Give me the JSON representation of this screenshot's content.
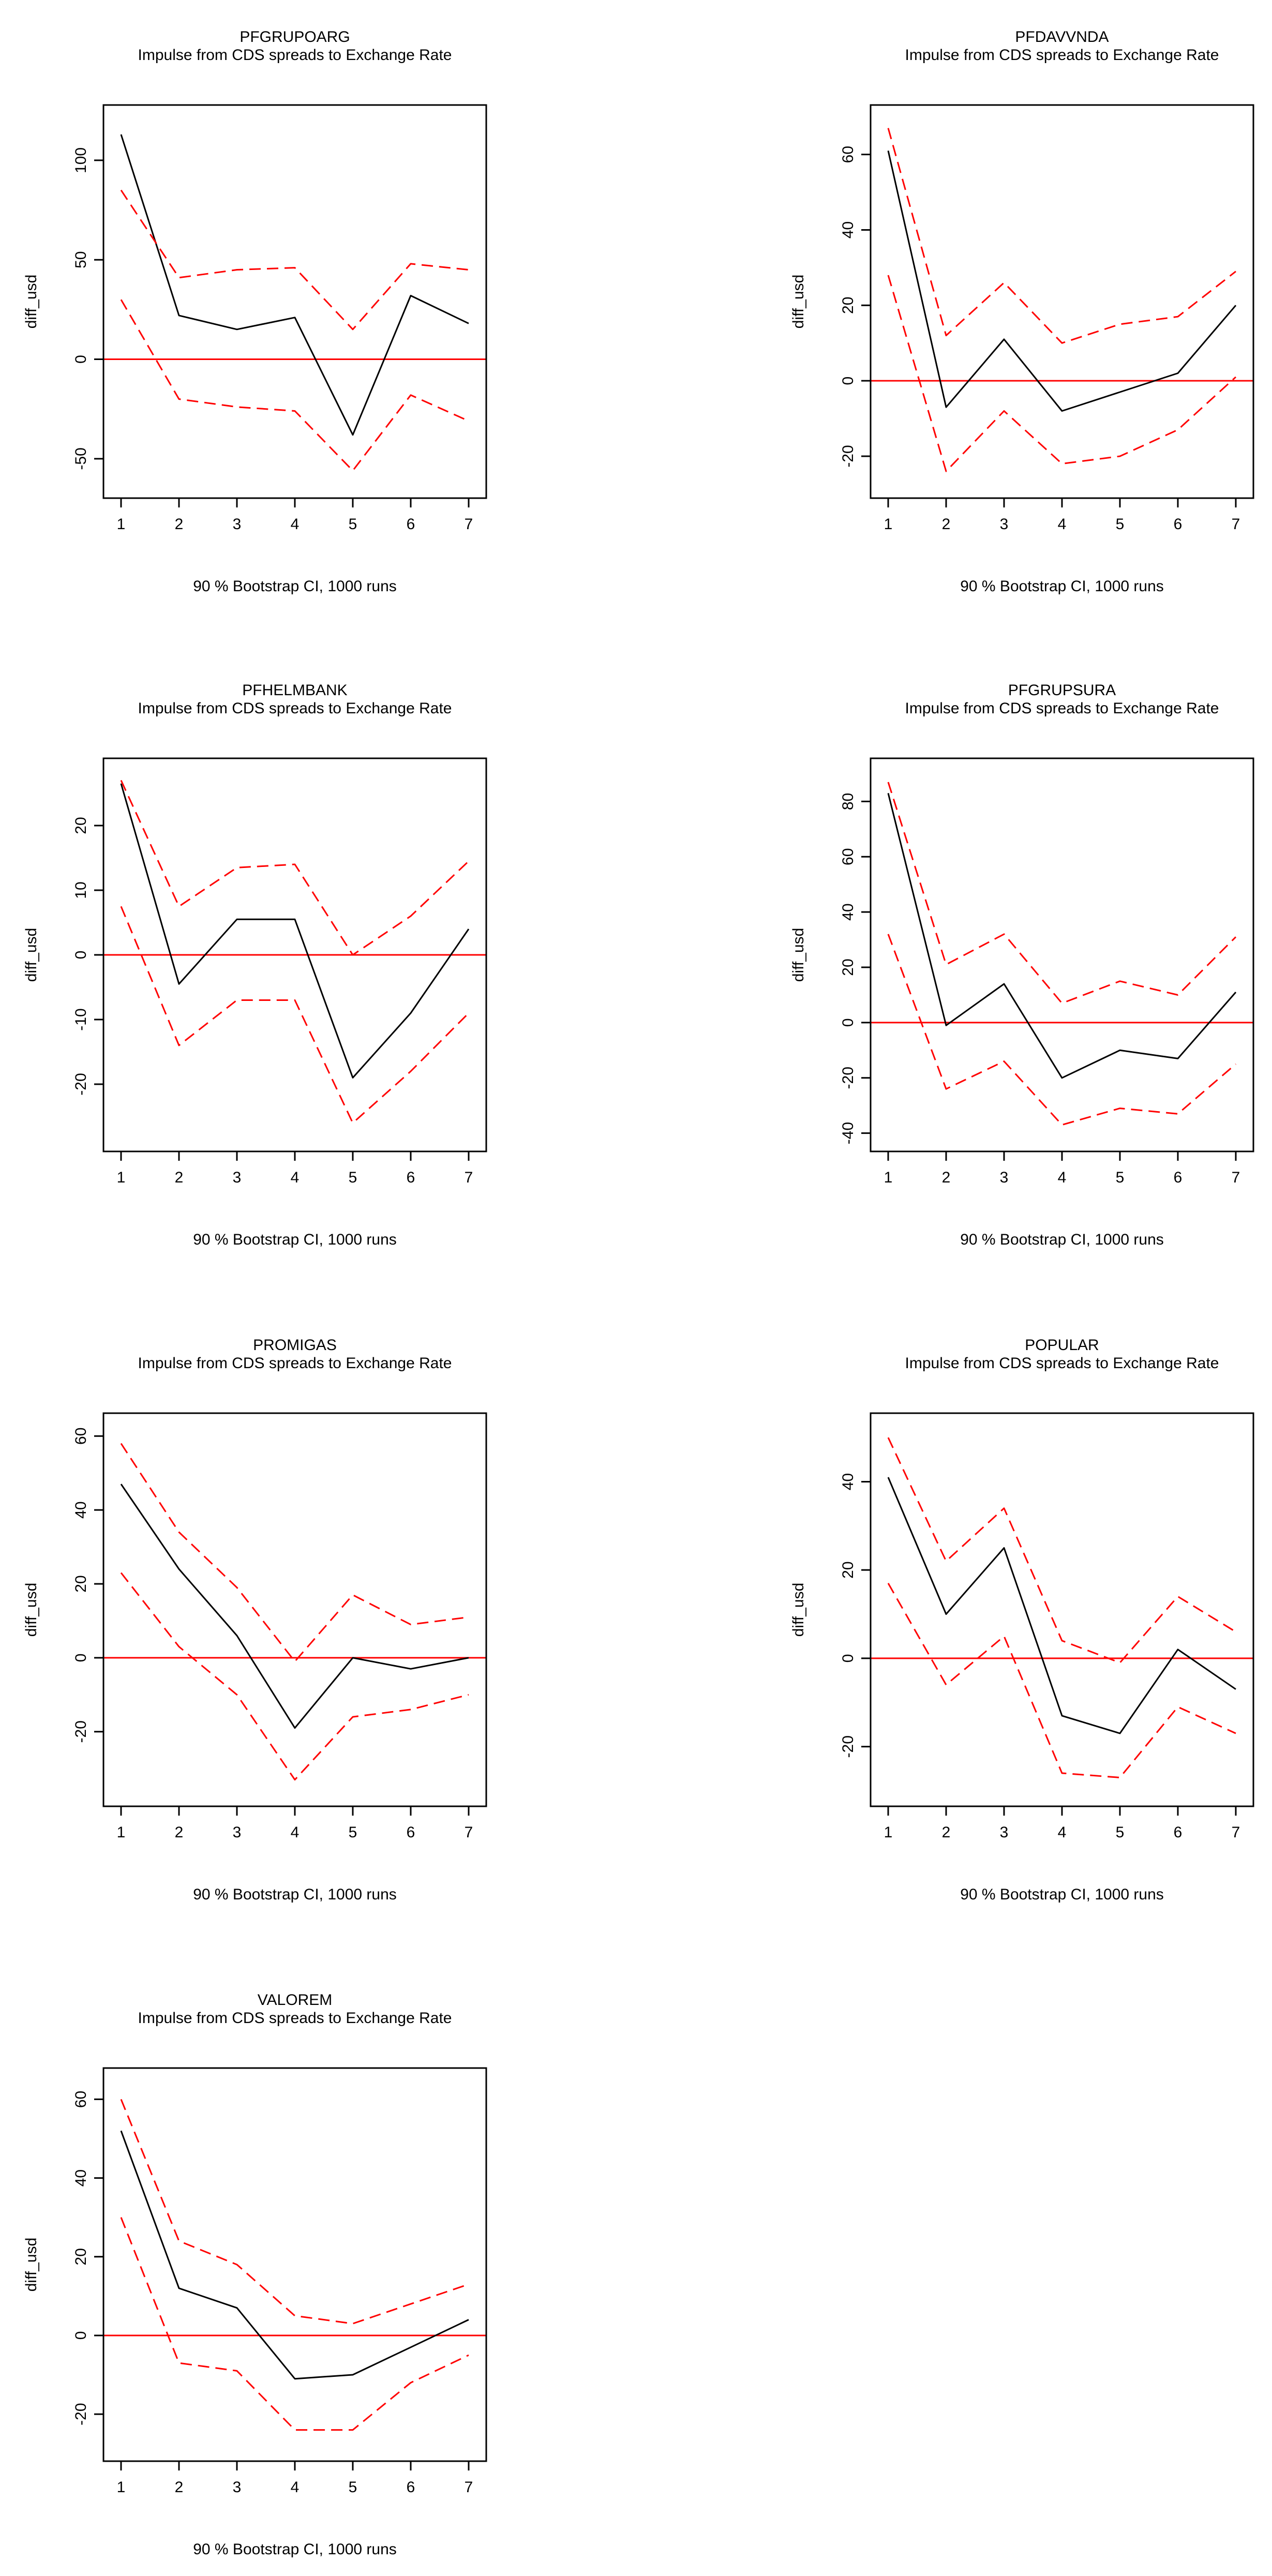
{
  "colors": {
    "estimate": "#000000",
    "bounds": "#ff0000",
    "zero_line": "#ff0000",
    "axes": "#000000"
  },
  "chart_data": [
    {
      "type": "line",
      "title": "PFGRUPOARG",
      "subtitle": "Impulse from CDS spreads to Exchange Rate",
      "ylabel": "diff_usd",
      "xlabel": "90 % Bootstrap CI,  1000 runs",
      "x": [
        1,
        2,
        3,
        4,
        5,
        6,
        7
      ],
      "xlim": [
        1,
        7
      ],
      "ylim": [
        -62,
        120
      ],
      "yticks": [
        -50,
        0,
        50,
        100
      ],
      "zero_line": 0,
      "series": [
        {
          "role": "irf",
          "style": "solid",
          "values": [
            113,
            22,
            15,
            21,
            -38,
            32,
            18
          ]
        },
        {
          "role": "upper",
          "style": "dashed",
          "values": [
            85,
            41,
            45,
            46,
            15,
            48,
            45
          ]
        },
        {
          "role": "lower",
          "style": "dashed",
          "values": [
            30,
            -20,
            -24,
            -26,
            -56,
            -18,
            -31
          ]
        }
      ]
    },
    {
      "type": "line",
      "title": "PFDAVVNDA",
      "subtitle": "Impulse from CDS spreads to Exchange Rate",
      "ylabel": "diff_usd",
      "xlabel": "90 % Bootstrap CI,  1000 runs",
      "x": [
        1,
        2,
        3,
        4,
        5,
        6,
        7
      ],
      "xlim": [
        1,
        7
      ],
      "ylim": [
        -27,
        69
      ],
      "yticks": [
        -20,
        0,
        20,
        40,
        60
      ],
      "zero_line": 0,
      "series": [
        {
          "role": "irf",
          "style": "solid",
          "values": [
            61,
            -7,
            11,
            -8,
            -3,
            2,
            20
          ]
        },
        {
          "role": "upper",
          "style": "dashed",
          "values": [
            67,
            12,
            26,
            10,
            15,
            17,
            29
          ]
        },
        {
          "role": "lower",
          "style": "dashed",
          "values": [
            28,
            -24,
            -8,
            -22,
            -20,
            -13,
            1
          ]
        }
      ]
    },
    {
      "type": "line",
      "title": "PFHELMBANK",
      "subtitle": "Impulse from CDS spreads to Exchange Rate",
      "ylabel": "diff_usd",
      "xlabel": "90 % Bootstrap CI,  1000 runs",
      "x": [
        1,
        2,
        3,
        4,
        5,
        6,
        7
      ],
      "xlim": [
        1,
        7
      ],
      "ylim": [
        -28,
        28
      ],
      "yticks": [
        -20,
        -10,
        0,
        10,
        20
      ],
      "zero_line": 0,
      "series": [
        {
          "role": "irf",
          "style": "solid",
          "values": [
            26.5,
            -4.5,
            5.5,
            5.5,
            -19,
            -9,
            4
          ]
        },
        {
          "role": "upper",
          "style": "dashed",
          "values": [
            27,
            7.5,
            13.5,
            14,
            0,
            6,
            14.5
          ]
        },
        {
          "role": "lower",
          "style": "dashed",
          "values": [
            7.5,
            -14,
            -7,
            -7,
            -26,
            -18,
            -9
          ]
        }
      ]
    },
    {
      "type": "line",
      "title": "PFGRUPSURA",
      "subtitle": "Impulse from CDS spreads to Exchange Rate",
      "ylabel": "diff_usd",
      "xlabel": "90 % Bootstrap CI,  1000 runs",
      "x": [
        1,
        2,
        3,
        4,
        5,
        6,
        7
      ],
      "xlim": [
        1,
        7
      ],
      "ylim": [
        -41,
        90
      ],
      "yticks": [
        -40,
        -20,
        0,
        20,
        40,
        60,
        80
      ],
      "zero_line": 0,
      "series": [
        {
          "role": "irf",
          "style": "solid",
          "values": [
            83,
            -1,
            14,
            -20,
            -10,
            -13,
            11
          ]
        },
        {
          "role": "upper",
          "style": "dashed",
          "values": [
            87,
            21,
            32,
            7,
            15,
            10,
            31
          ]
        },
        {
          "role": "lower",
          "style": "dashed",
          "values": [
            32,
            -24,
            -14,
            -37,
            -31,
            -33,
            -15
          ]
        }
      ]
    },
    {
      "type": "line",
      "title": "PROMIGAS",
      "subtitle": "Impulse from CDS spreads to Exchange Rate",
      "ylabel": "diff_usd",
      "xlabel": "90 % Bootstrap CI,  1000 runs",
      "x": [
        1,
        2,
        3,
        4,
        5,
        6,
        7
      ],
      "xlim": [
        1,
        7
      ],
      "ylim": [
        -36,
        62
      ],
      "yticks": [
        -20,
        0,
        20,
        40,
        60
      ],
      "zero_line": 0,
      "series": [
        {
          "role": "irf",
          "style": "solid",
          "values": [
            47,
            24,
            6,
            -19,
            0,
            -3,
            0
          ]
        },
        {
          "role": "upper",
          "style": "dashed",
          "values": [
            58,
            34,
            19,
            -1,
            17,
            9,
            11
          ]
        },
        {
          "role": "lower",
          "style": "dashed",
          "values": [
            23,
            3,
            -10,
            -33,
            -16,
            -14,
            -10
          ]
        }
      ]
    },
    {
      "type": "line",
      "title": "POPULAR",
      "subtitle": "Impulse from CDS spreads to Exchange Rate",
      "ylabel": "diff_usd",
      "xlabel": "90 % Bootstrap CI,  1000 runs",
      "x": [
        1,
        2,
        3,
        4,
        5,
        6,
        7
      ],
      "xlim": [
        1,
        7
      ],
      "ylim": [
        -30,
        52
      ],
      "yticks": [
        -20,
        0,
        20,
        40
      ],
      "zero_line": 0,
      "series": [
        {
          "role": "irf",
          "style": "solid",
          "values": [
            41,
            10,
            25,
            -13,
            -17,
            2,
            -7
          ]
        },
        {
          "role": "upper",
          "style": "dashed",
          "values": [
            50,
            22,
            34,
            4,
            -1,
            14,
            6
          ]
        },
        {
          "role": "lower",
          "style": "dashed",
          "values": [
            17,
            -6,
            5,
            -26,
            -27,
            -11,
            -17
          ]
        }
      ]
    },
    {
      "type": "line",
      "title": "VALOREM",
      "subtitle": "Impulse from CDS spreads to Exchange Rate",
      "ylabel": "diff_usd",
      "xlabel": "90 % Bootstrap CI,  1000 runs",
      "x": [
        1,
        2,
        3,
        4,
        5,
        6,
        7
      ],
      "xlim": [
        1,
        7
      ],
      "ylim": [
        -28,
        64
      ],
      "yticks": [
        -20,
        0,
        20,
        40,
        60
      ],
      "zero_line": 0,
      "series": [
        {
          "role": "irf",
          "style": "solid",
          "values": [
            52,
            12,
            7,
            -11,
            -10,
            -3,
            4
          ]
        },
        {
          "role": "upper",
          "style": "dashed",
          "values": [
            60,
            24,
            18,
            5,
            3,
            8,
            13
          ]
        },
        {
          "role": "lower",
          "style": "dashed",
          "values": [
            30,
            -7,
            -9,
            -24,
            -24,
            -12,
            -5
          ]
        }
      ]
    }
  ]
}
